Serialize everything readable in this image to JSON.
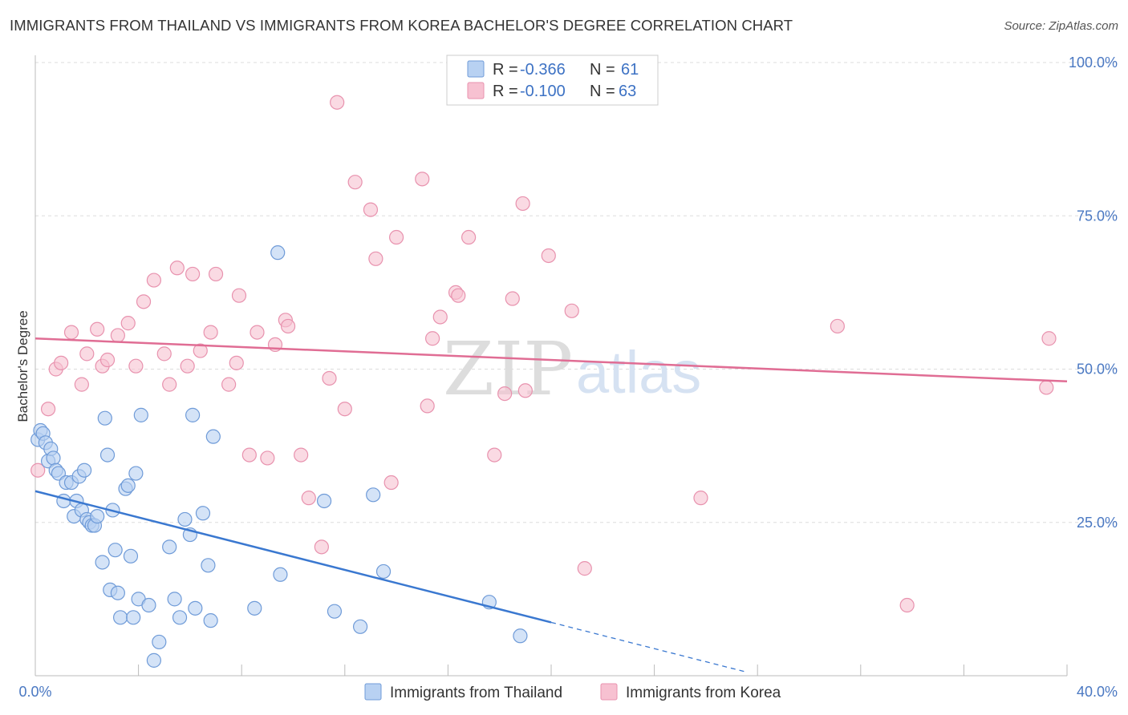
{
  "header": {
    "title": "IMMIGRANTS FROM THAILAND VS IMMIGRANTS FROM KOREA BACHELOR'S DEGREE CORRELATION CHART",
    "source": "Source: ZipAtlas.com"
  },
  "watermark": {
    "zip": "ZIP",
    "atlas": "atlas"
  },
  "legend": {
    "rows": [
      {
        "r_label": "R =",
        "r_value": "-0.366",
        "n_label": "N =",
        "n_value": "61"
      },
      {
        "r_label": "R =",
        "r_value": "-0.100",
        "n_label": "N =",
        "n_value": "63"
      }
    ]
  },
  "colors": {
    "thailand_fill": "#b8d1f2",
    "thailand_stroke": "#6f9bd8",
    "thailand_line": "#3a78d0",
    "korea_fill": "#f7c1d1",
    "korea_stroke": "#e892ae",
    "korea_line": "#e06d94",
    "grid": "#dddddd",
    "axis": "#bbbbbb",
    "tick_text": "#4a78c2"
  },
  "chart_data": {
    "type": "scatter",
    "title": "IMMIGRANTS FROM THAILAND VS IMMIGRANTS FROM KOREA BACHELOR'S DEGREE CORRELATION CHART",
    "xlabel": "",
    "ylabel": "Bachelor's Degree",
    "xlim": [
      0,
      40
    ],
    "ylim": [
      0,
      100
    ],
    "x_tick_labels": [
      "0.0%",
      "40.0%"
    ],
    "y_ticks": [
      25,
      50,
      75,
      100
    ],
    "y_tick_labels": [
      "25.0%",
      "50.0%",
      "75.0%",
      "100.0%"
    ],
    "grid": true,
    "legend_position": "top-center",
    "series": [
      {
        "name": "Immigrants from Thailand",
        "r": -0.366,
        "n": 61,
        "trend": {
          "x0": 0,
          "y0": 30.1,
          "x1": 20,
          "y1": 8.7,
          "dashed_to_x": 27.6
        },
        "points": [
          [
            0.1,
            38.5
          ],
          [
            0.2,
            40.0
          ],
          [
            0.3,
            39.5
          ],
          [
            0.4,
            38.0
          ],
          [
            0.5,
            35.0
          ],
          [
            0.6,
            37.0
          ],
          [
            0.7,
            35.5
          ],
          [
            0.8,
            33.5
          ],
          [
            0.9,
            33.0
          ],
          [
            1.1,
            28.5
          ],
          [
            1.2,
            31.5
          ],
          [
            1.4,
            31.5
          ],
          [
            1.5,
            26.0
          ],
          [
            1.6,
            28.5
          ],
          [
            1.7,
            32.5
          ],
          [
            1.8,
            27.0
          ],
          [
            1.9,
            33.5
          ],
          [
            2.0,
            25.5
          ],
          [
            2.1,
            25.0
          ],
          [
            2.2,
            24.5
          ],
          [
            2.3,
            24.5
          ],
          [
            2.4,
            26.0
          ],
          [
            2.6,
            18.5
          ],
          [
            2.7,
            42.0
          ],
          [
            2.8,
            36.0
          ],
          [
            2.9,
            14.0
          ],
          [
            3.0,
            27.0
          ],
          [
            3.1,
            20.5
          ],
          [
            3.2,
            13.5
          ],
          [
            3.3,
            9.5
          ],
          [
            3.5,
            30.5
          ],
          [
            3.6,
            31.0
          ],
          [
            3.7,
            19.5
          ],
          [
            3.8,
            9.5
          ],
          [
            3.9,
            33.0
          ],
          [
            4.0,
            12.5
          ],
          [
            4.1,
            42.5
          ],
          [
            4.4,
            11.5
          ],
          [
            4.6,
            2.5
          ],
          [
            4.8,
            5.5
          ],
          [
            5.2,
            21.0
          ],
          [
            5.4,
            12.5
          ],
          [
            5.6,
            9.5
          ],
          [
            5.8,
            25.5
          ],
          [
            6.0,
            23.0
          ],
          [
            6.1,
            42.5
          ],
          [
            6.2,
            11.0
          ],
          [
            6.5,
            26.5
          ],
          [
            6.7,
            18.0
          ],
          [
            6.8,
            9.0
          ],
          [
            6.9,
            39.0
          ],
          [
            8.5,
            11.0
          ],
          [
            9.4,
            69.0
          ],
          [
            9.5,
            16.5
          ],
          [
            11.2,
            28.5
          ],
          [
            11.6,
            10.5
          ],
          [
            12.6,
            8.0
          ],
          [
            13.1,
            29.5
          ],
          [
            13.5,
            17.0
          ],
          [
            17.6,
            12.0
          ],
          [
            18.8,
            6.5
          ]
        ]
      },
      {
        "name": "Immigrants from Korea",
        "r": -0.1,
        "n": 63,
        "trend": {
          "x0": 0,
          "y0": 55.0,
          "x1": 40,
          "y1": 48.0
        },
        "points": [
          [
            0.1,
            33.5
          ],
          [
            0.5,
            43.5
          ],
          [
            0.8,
            50.0
          ],
          [
            1.0,
            51.0
          ],
          [
            1.4,
            56.0
          ],
          [
            1.8,
            47.5
          ],
          [
            2.0,
            52.5
          ],
          [
            2.4,
            56.5
          ],
          [
            2.6,
            50.5
          ],
          [
            2.8,
            51.5
          ],
          [
            3.2,
            55.5
          ],
          [
            3.6,
            57.5
          ],
          [
            3.9,
            50.5
          ],
          [
            4.2,
            61.0
          ],
          [
            4.6,
            64.5
          ],
          [
            5.0,
            52.5
          ],
          [
            5.2,
            47.5
          ],
          [
            5.5,
            66.5
          ],
          [
            5.9,
            50.5
          ],
          [
            6.1,
            65.5
          ],
          [
            6.4,
            53.0
          ],
          [
            6.8,
            56.0
          ],
          [
            7.0,
            65.5
          ],
          [
            7.5,
            47.5
          ],
          [
            7.8,
            51.0
          ],
          [
            7.9,
            62.0
          ],
          [
            8.3,
            36.0
          ],
          [
            8.6,
            56.0
          ],
          [
            9.0,
            35.5
          ],
          [
            9.3,
            54.0
          ],
          [
            9.7,
            58.0
          ],
          [
            9.8,
            57.0
          ],
          [
            10.3,
            36.0
          ],
          [
            10.6,
            29.0
          ],
          [
            11.1,
            21.0
          ],
          [
            11.4,
            48.5
          ],
          [
            11.7,
            93.5
          ],
          [
            12.0,
            43.5
          ],
          [
            12.4,
            80.5
          ],
          [
            13.0,
            76.0
          ],
          [
            13.2,
            68.0
          ],
          [
            13.8,
            31.5
          ],
          [
            14.0,
            71.5
          ],
          [
            15.0,
            81.0
          ],
          [
            15.2,
            44.0
          ],
          [
            15.4,
            55.0
          ],
          [
            15.7,
            58.5
          ],
          [
            16.3,
            62.5
          ],
          [
            16.4,
            62.0
          ],
          [
            16.8,
            71.5
          ],
          [
            17.8,
            36.0
          ],
          [
            18.2,
            46.0
          ],
          [
            18.5,
            61.5
          ],
          [
            18.9,
            77.0
          ],
          [
            19.0,
            46.5
          ],
          [
            19.9,
            68.5
          ],
          [
            20.8,
            59.5
          ],
          [
            21.3,
            17.5
          ],
          [
            25.8,
            29.0
          ],
          [
            31.1,
            57.0
          ],
          [
            33.8,
            11.5
          ],
          [
            39.2,
            47.0
          ],
          [
            39.3,
            55.0
          ]
        ]
      }
    ]
  }
}
